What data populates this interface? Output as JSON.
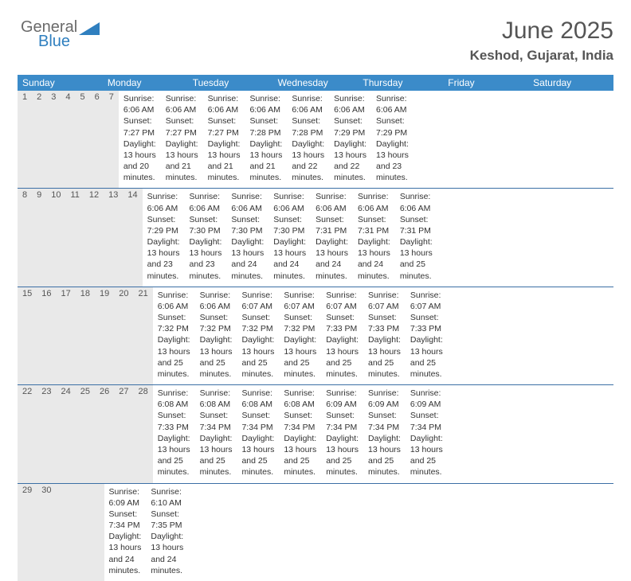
{
  "logo": {
    "general": "General",
    "blue": "Blue"
  },
  "header": {
    "title": "June 2025",
    "subtitle": "Keshod, Gujarat, India"
  },
  "colors": {
    "header_bg": "#3b8bc9",
    "week_border": "#3b6fa5",
    "daynum_bg": "#e9e9e9",
    "logo_gray": "#6a6a6a",
    "logo_blue": "#2f7fbf"
  },
  "day_names": [
    "Sunday",
    "Monday",
    "Tuesday",
    "Wednesday",
    "Thursday",
    "Friday",
    "Saturday"
  ],
  "weeks": [
    [
      {
        "n": "1",
        "sr": "Sunrise: 6:06 AM",
        "ss": "Sunset: 7:27 PM",
        "dl": "Daylight: 13 hours and 20 minutes."
      },
      {
        "n": "2",
        "sr": "Sunrise: 6:06 AM",
        "ss": "Sunset: 7:27 PM",
        "dl": "Daylight: 13 hours and 21 minutes."
      },
      {
        "n": "3",
        "sr": "Sunrise: 6:06 AM",
        "ss": "Sunset: 7:27 PM",
        "dl": "Daylight: 13 hours and 21 minutes."
      },
      {
        "n": "4",
        "sr": "Sunrise: 6:06 AM",
        "ss": "Sunset: 7:28 PM",
        "dl": "Daylight: 13 hours and 21 minutes."
      },
      {
        "n": "5",
        "sr": "Sunrise: 6:06 AM",
        "ss": "Sunset: 7:28 PM",
        "dl": "Daylight: 13 hours and 22 minutes."
      },
      {
        "n": "6",
        "sr": "Sunrise: 6:06 AM",
        "ss": "Sunset: 7:29 PM",
        "dl": "Daylight: 13 hours and 22 minutes."
      },
      {
        "n": "7",
        "sr": "Sunrise: 6:06 AM",
        "ss": "Sunset: 7:29 PM",
        "dl": "Daylight: 13 hours and 23 minutes."
      }
    ],
    [
      {
        "n": "8",
        "sr": "Sunrise: 6:06 AM",
        "ss": "Sunset: 7:29 PM",
        "dl": "Daylight: 13 hours and 23 minutes."
      },
      {
        "n": "9",
        "sr": "Sunrise: 6:06 AM",
        "ss": "Sunset: 7:30 PM",
        "dl": "Daylight: 13 hours and 23 minutes."
      },
      {
        "n": "10",
        "sr": "Sunrise: 6:06 AM",
        "ss": "Sunset: 7:30 PM",
        "dl": "Daylight: 13 hours and 24 minutes."
      },
      {
        "n": "11",
        "sr": "Sunrise: 6:06 AM",
        "ss": "Sunset: 7:30 PM",
        "dl": "Daylight: 13 hours and 24 minutes."
      },
      {
        "n": "12",
        "sr": "Sunrise: 6:06 AM",
        "ss": "Sunset: 7:31 PM",
        "dl": "Daylight: 13 hours and 24 minutes."
      },
      {
        "n": "13",
        "sr": "Sunrise: 6:06 AM",
        "ss": "Sunset: 7:31 PM",
        "dl": "Daylight: 13 hours and 24 minutes."
      },
      {
        "n": "14",
        "sr": "Sunrise: 6:06 AM",
        "ss": "Sunset: 7:31 PM",
        "dl": "Daylight: 13 hours and 25 minutes."
      }
    ],
    [
      {
        "n": "15",
        "sr": "Sunrise: 6:06 AM",
        "ss": "Sunset: 7:32 PM",
        "dl": "Daylight: 13 hours and 25 minutes."
      },
      {
        "n": "16",
        "sr": "Sunrise: 6:06 AM",
        "ss": "Sunset: 7:32 PM",
        "dl": "Daylight: 13 hours and 25 minutes."
      },
      {
        "n": "17",
        "sr": "Sunrise: 6:07 AM",
        "ss": "Sunset: 7:32 PM",
        "dl": "Daylight: 13 hours and 25 minutes."
      },
      {
        "n": "18",
        "sr": "Sunrise: 6:07 AM",
        "ss": "Sunset: 7:32 PM",
        "dl": "Daylight: 13 hours and 25 minutes."
      },
      {
        "n": "19",
        "sr": "Sunrise: 6:07 AM",
        "ss": "Sunset: 7:33 PM",
        "dl": "Daylight: 13 hours and 25 minutes."
      },
      {
        "n": "20",
        "sr": "Sunrise: 6:07 AM",
        "ss": "Sunset: 7:33 PM",
        "dl": "Daylight: 13 hours and 25 minutes."
      },
      {
        "n": "21",
        "sr": "Sunrise: 6:07 AM",
        "ss": "Sunset: 7:33 PM",
        "dl": "Daylight: 13 hours and 25 minutes."
      }
    ],
    [
      {
        "n": "22",
        "sr": "Sunrise: 6:08 AM",
        "ss": "Sunset: 7:33 PM",
        "dl": "Daylight: 13 hours and 25 minutes."
      },
      {
        "n": "23",
        "sr": "Sunrise: 6:08 AM",
        "ss": "Sunset: 7:34 PM",
        "dl": "Daylight: 13 hours and 25 minutes."
      },
      {
        "n": "24",
        "sr": "Sunrise: 6:08 AM",
        "ss": "Sunset: 7:34 PM",
        "dl": "Daylight: 13 hours and 25 minutes."
      },
      {
        "n": "25",
        "sr": "Sunrise: 6:08 AM",
        "ss": "Sunset: 7:34 PM",
        "dl": "Daylight: 13 hours and 25 minutes."
      },
      {
        "n": "26",
        "sr": "Sunrise: 6:09 AM",
        "ss": "Sunset: 7:34 PM",
        "dl": "Daylight: 13 hours and 25 minutes."
      },
      {
        "n": "27",
        "sr": "Sunrise: 6:09 AM",
        "ss": "Sunset: 7:34 PM",
        "dl": "Daylight: 13 hours and 25 minutes."
      },
      {
        "n": "28",
        "sr": "Sunrise: 6:09 AM",
        "ss": "Sunset: 7:34 PM",
        "dl": "Daylight: 13 hours and 25 minutes."
      }
    ],
    [
      {
        "n": "29",
        "sr": "Sunrise: 6:09 AM",
        "ss": "Sunset: 7:34 PM",
        "dl": "Daylight: 13 hours and 24 minutes."
      },
      {
        "n": "30",
        "sr": "Sunrise: 6:10 AM",
        "ss": "Sunset: 7:35 PM",
        "dl": "Daylight: 13 hours and 24 minutes."
      },
      {
        "n": "",
        "sr": "",
        "ss": "",
        "dl": ""
      },
      {
        "n": "",
        "sr": "",
        "ss": "",
        "dl": ""
      },
      {
        "n": "",
        "sr": "",
        "ss": "",
        "dl": ""
      },
      {
        "n": "",
        "sr": "",
        "ss": "",
        "dl": ""
      },
      {
        "n": "",
        "sr": "",
        "ss": "",
        "dl": ""
      }
    ]
  ]
}
